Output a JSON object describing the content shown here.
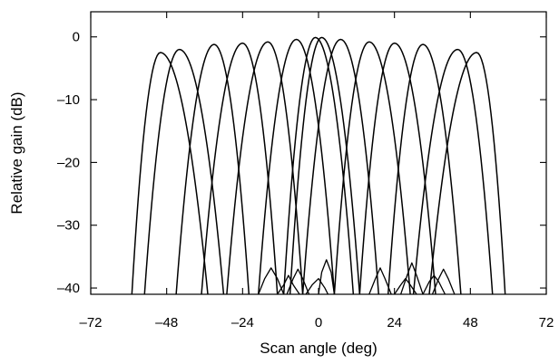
{
  "chart_data": {
    "type": "line",
    "xlabel": "Scan angle (deg)",
    "ylabel": "Relative gain (dB)",
    "xlim": [
      -72,
      72
    ],
    "ylim": [
      -41,
      4
    ],
    "x_ticks": [
      -72,
      -48,
      -24,
      0,
      24,
      48,
      72
    ],
    "x_tick_labels": [
      "–72",
      "–48",
      "–24",
      "0",
      "24",
      "48",
      "72"
    ],
    "y_ticks": [
      0,
      -10,
      -20,
      -30,
      -40
    ],
    "y_tick_labels": [
      "0",
      "–10",
      "–20",
      "–30",
      "–40"
    ],
    "grid": false,
    "legend": "none",
    "line_color": "#000000",
    "beams": [
      {
        "peak_angle": -50,
        "peak_gain": -2.5,
        "null_left": -59,
        "null_right": -35
      },
      {
        "peak_angle": -44,
        "peak_gain": -2.0,
        "null_left": -55,
        "null_right": -30
      },
      {
        "peak_angle": -33,
        "peak_gain": -1.2,
        "null_left": -45,
        "null_right": -22
      },
      {
        "peak_angle": -24,
        "peak_gain": -1.0,
        "null_left": -37,
        "null_right": -13
      },
      {
        "peak_angle": -16,
        "peak_gain": -0.8,
        "null_left": -29,
        "null_right": -5
      },
      {
        "peak_angle": -7,
        "peak_gain": -0.4,
        "null_left": -19,
        "null_right": 5
      },
      {
        "peak_angle": -1,
        "peak_gain": -0.1,
        "null_left": -11,
        "null_right": 11
      },
      {
        "peak_angle": 1,
        "peak_gain": -0.1,
        "null_left": -9,
        "null_right": 13
      },
      {
        "peak_angle": 7,
        "peak_gain": -0.4,
        "null_left": -5,
        "null_right": 19
      },
      {
        "peak_angle": 16,
        "peak_gain": -0.8,
        "null_left": 5,
        "null_right": 29
      },
      {
        "peak_angle": 24,
        "peak_gain": -1.0,
        "null_left": 13,
        "null_right": 37
      },
      {
        "peak_angle": 33,
        "peak_gain": -1.2,
        "null_left": 22,
        "null_right": 45
      },
      {
        "peak_angle": 44,
        "peak_gain": -2.0,
        "null_left": 30,
        "null_right": 55
      },
      {
        "peak_angle": 50,
        "peak_gain": -2.5,
        "null_left": 35,
        "null_right": 59
      }
    ],
    "sidelobes": [
      {
        "x": [
          -19,
          -17,
          -15,
          -13,
          -11
        ],
        "y": [
          -41,
          -38.5,
          -36.8,
          -38.5,
          -41
        ]
      },
      {
        "x": [
          -13,
          -11,
          -9.5,
          -8,
          -6
        ],
        "y": [
          -41,
          -39.5,
          -38.0,
          -39.5,
          -41
        ]
      },
      {
        "x": [
          -10,
          -8,
          -6.5,
          -5,
          -3
        ],
        "y": [
          -41,
          -38.5,
          -37.0,
          -38.5,
          -41
        ]
      },
      {
        "x": [
          -4,
          -2,
          0,
          2,
          3
        ],
        "y": [
          -41,
          -39.5,
          -38.5,
          -40,
          -41
        ]
      },
      {
        "x": [
          0,
          1,
          2.5,
          4,
          5
        ],
        "y": [
          -41,
          -37.5,
          -35.5,
          -37.5,
          -41
        ]
      },
      {
        "x": [
          16,
          18,
          19.5,
          21,
          23
        ],
        "y": [
          -41,
          -38.5,
          -36.8,
          -38.5,
          -41
        ]
      },
      {
        "x": [
          24,
          26,
          27.5,
          29,
          31
        ],
        "y": [
          -41,
          -39.5,
          -38.5,
          -39.5,
          -41
        ]
      },
      {
        "x": [
          26,
          28,
          29.5,
          31,
          33
        ],
        "y": [
          -41,
          -38,
          -36.0,
          -38,
          -41
        ]
      },
      {
        "x": [
          33,
          35,
          36.5,
          38,
          40
        ],
        "y": [
          -41,
          -39,
          -38.0,
          -39,
          -41
        ]
      },
      {
        "x": [
          36,
          38,
          39.5,
          41,
          43
        ],
        "y": [
          -41,
          -38.5,
          -37.0,
          -38.5,
          -41
        ]
      }
    ]
  }
}
